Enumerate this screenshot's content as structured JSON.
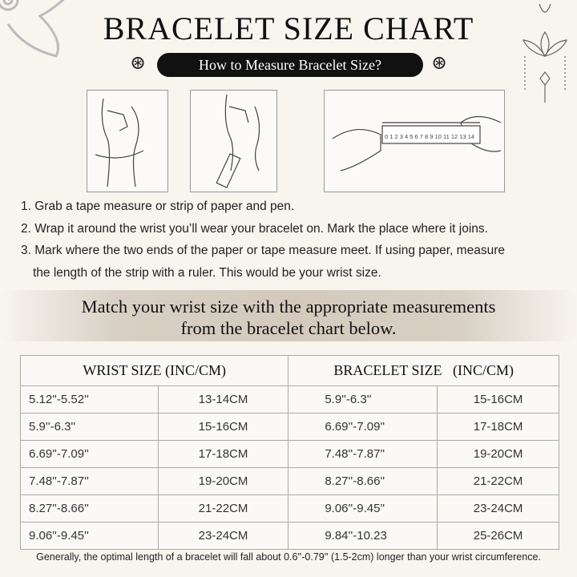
{
  "title": "BRACELET SIZE CHART",
  "subtitle": "How to Measure Bracelet Size?",
  "ruler_numbers": "0 1 2 3 4 5 6 7 8 9 10 11 12 13 14",
  "steps": [
    "1. Grab a tape measure or strip of paper and pen.",
    "2. Wrap it around the wrist you’ll wear your bracelet on. Mark the place where it joins.",
    "3. Mark where the two ends of the paper or tape measure meet. If using paper, measure",
    "the length of the strip with a ruler. This would be your wrist size."
  ],
  "band": {
    "line1": "Match your wrist size with the appropriate measurements",
    "line2": "from the bracelet chart below."
  },
  "table": {
    "headers": [
      "WRIST SIZE (INC/CM)",
      "BRACELET SIZE   (INC/CM)"
    ],
    "rows": [
      [
        "5.12''-5.52''",
        "13-14CM",
        "5.9''-6.3''",
        "15-16CM"
      ],
      [
        "5.9''-6.3''",
        "15-16CM",
        "6.69''-7.09''",
        "17-18CM"
      ],
      [
        "6.69''-7.09''",
        "17-18CM",
        "7.48''-7.87''",
        "19-20CM"
      ],
      [
        "7.48''-7.87''",
        "19-20CM",
        "8.27''-8.66''",
        "21-22CM"
      ],
      [
        "8.27''-8.66''",
        "21-22CM",
        "9.06''-9.45''",
        "23-24CM"
      ],
      [
        "9.06''-9.45''",
        "23-24CM",
        "9.84''-10.23",
        "25-26CM"
      ]
    ]
  },
  "note": "Generally, the optimal length of a bracelet will fall about 0.6''-0.79'' (1.5-2cm) longer than your wrist circumference."
}
